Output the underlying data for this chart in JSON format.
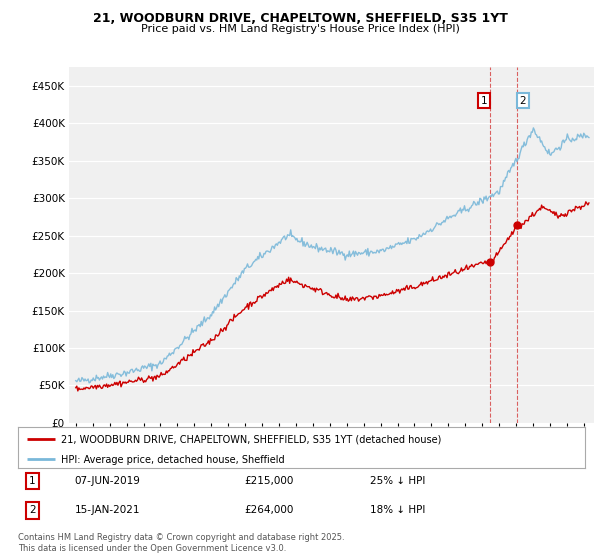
{
  "title_line1": "21, WOODBURN DRIVE, CHAPELTOWN, SHEFFIELD, S35 1YT",
  "title_line2": "Price paid vs. HM Land Registry's House Price Index (HPI)",
  "ytick_values": [
    0,
    50000,
    100000,
    150000,
    200000,
    250000,
    300000,
    350000,
    400000,
    450000
  ],
  "ylim": [
    0,
    475000
  ],
  "xlim_start": 1994.6,
  "xlim_end": 2025.6,
  "hpi_color": "#7ab8d9",
  "price_color": "#cc0000",
  "dashed_line_color": "#cc0000",
  "transaction1_date": "07-JUN-2019",
  "transaction1_price": 215000,
  "transaction1_pct": "25% ↓ HPI",
  "transaction1_year": 2019.44,
  "transaction2_date": "15-JAN-2021",
  "transaction2_price": 264000,
  "transaction2_pct": "18% ↓ HPI",
  "transaction2_year": 2021.04,
  "legend_label1": "21, WOODBURN DRIVE, CHAPELTOWN, SHEFFIELD, S35 1YT (detached house)",
  "legend_label2": "HPI: Average price, detached house, Sheffield",
  "footer": "Contains HM Land Registry data © Crown copyright and database right 2025.\nThis data is licensed under the Open Government Licence v3.0.",
  "background_color": "#ffffff",
  "plot_bg_color": "#f0f0f0"
}
